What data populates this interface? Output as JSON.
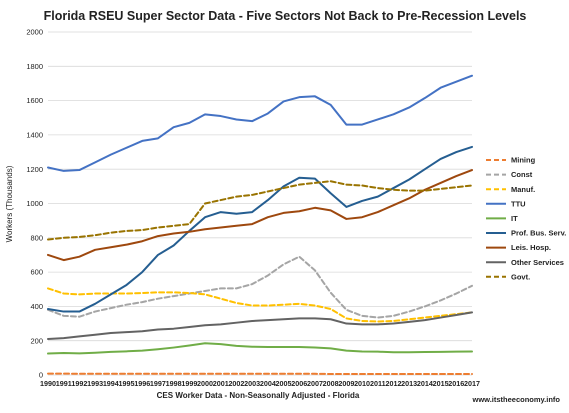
{
  "chart_data": {
    "type": "line",
    "title": "Florida RSEU Super Sector Data - Five Sectors Not Back to Pre-Recession Levels",
    "xlabel": "CES Worker Data - Non-Seasonally Adjusted - Florida",
    "ylabel": "Workers (Thousands)",
    "source": "www.itstheeconomy.info",
    "ylim": [
      0,
      2000
    ],
    "yticks": [
      0,
      200,
      400,
      600,
      800,
      1000,
      1200,
      1400,
      1600,
      1800,
      2000
    ],
    "grid": true,
    "legend_position": "right",
    "x": [
      "1990",
      "1991",
      "1992",
      "1993",
      "1994",
      "1995",
      "1996",
      "1997",
      "1998",
      "1999",
      "2000",
      "2001",
      "2002",
      "2003",
      "2004",
      "2005",
      "2006",
      "2007",
      "2008",
      "2009",
      "2010",
      "2011",
      "2012",
      "2013",
      "2014",
      "2015",
      "2016",
      "2017"
    ],
    "series": [
      {
        "name": "Mining",
        "color": "#ED7D31",
        "dash": "5,3",
        "values": [
          8,
          8,
          7,
          7,
          7,
          7,
          7,
          7,
          7,
          7,
          7,
          7,
          7,
          7,
          7,
          7,
          7,
          7,
          6,
          6,
          6,
          6,
          6,
          6,
          6,
          6,
          6,
          6
        ]
      },
      {
        "name": "Const",
        "color": "#A5A5A5",
        "dash": "5,3",
        "values": [
          380,
          345,
          340,
          370,
          390,
          410,
          425,
          445,
          460,
          475,
          490,
          505,
          505,
          530,
          580,
          645,
          690,
          610,
          480,
          380,
          345,
          335,
          345,
          370,
          400,
          435,
          475,
          520
        ]
      },
      {
        "name": "Manuf.",
        "color": "#FFC000",
        "dash": "5,3",
        "values": [
          505,
          475,
          470,
          475,
          475,
          475,
          478,
          482,
          482,
          478,
          470,
          445,
          420,
          405,
          405,
          410,
          415,
          405,
          385,
          330,
          315,
          312,
          315,
          325,
          335,
          345,
          355,
          365
        ]
      },
      {
        "name": "TTU",
        "color": "#4472C4",
        "dash": "",
        "values": [
          1210,
          1190,
          1195,
          1240,
          1285,
          1325,
          1365,
          1380,
          1445,
          1470,
          1520,
          1510,
          1490,
          1480,
          1525,
          1595,
          1620,
          1625,
          1575,
          1460,
          1460,
          1490,
          1520,
          1560,
          1615,
          1675,
          1710,
          1745
        ]
      },
      {
        "name": "IT",
        "color": "#70AD47",
        "dash": "",
        "values": [
          125,
          128,
          126,
          130,
          135,
          138,
          142,
          150,
          160,
          172,
          185,
          180,
          170,
          165,
          163,
          163,
          163,
          160,
          155,
          142,
          137,
          136,
          133,
          133,
          134,
          135,
          136,
          137
        ]
      },
      {
        "name": "Prof. Bus. Serv.",
        "color": "#255E91",
        "dash": "",
        "values": [
          385,
          370,
          370,
          415,
          470,
          525,
          600,
          700,
          755,
          840,
          920,
          950,
          940,
          950,
          1020,
          1100,
          1150,
          1145,
          1060,
          980,
          1015,
          1040,
          1090,
          1140,
          1200,
          1260,
          1300,
          1330
        ]
      },
      {
        "name": "Leis. Hosp.",
        "color": "#9E480E",
        "dash": "",
        "values": [
          700,
          670,
          690,
          730,
          745,
          760,
          780,
          810,
          825,
          835,
          850,
          860,
          870,
          880,
          920,
          945,
          955,
          975,
          960,
          910,
          920,
          950,
          990,
          1030,
          1080,
          1120,
          1160,
          1195
        ]
      },
      {
        "name": "Other Services",
        "color": "#636363",
        "dash": "",
        "values": [
          210,
          215,
          225,
          235,
          245,
          250,
          255,
          265,
          270,
          280,
          290,
          295,
          305,
          315,
          320,
          325,
          330,
          330,
          325,
          300,
          295,
          295,
          300,
          310,
          320,
          335,
          350,
          365
        ]
      },
      {
        "name": "Govt.",
        "color": "#997300",
        "dash": "5,3",
        "values": [
          790,
          800,
          805,
          815,
          830,
          840,
          845,
          860,
          870,
          880,
          1000,
          1020,
          1040,
          1050,
          1070,
          1090,
          1110,
          1120,
          1130,
          1110,
          1105,
          1090,
          1080,
          1075,
          1075,
          1085,
          1095,
          1105
        ]
      }
    ]
  }
}
